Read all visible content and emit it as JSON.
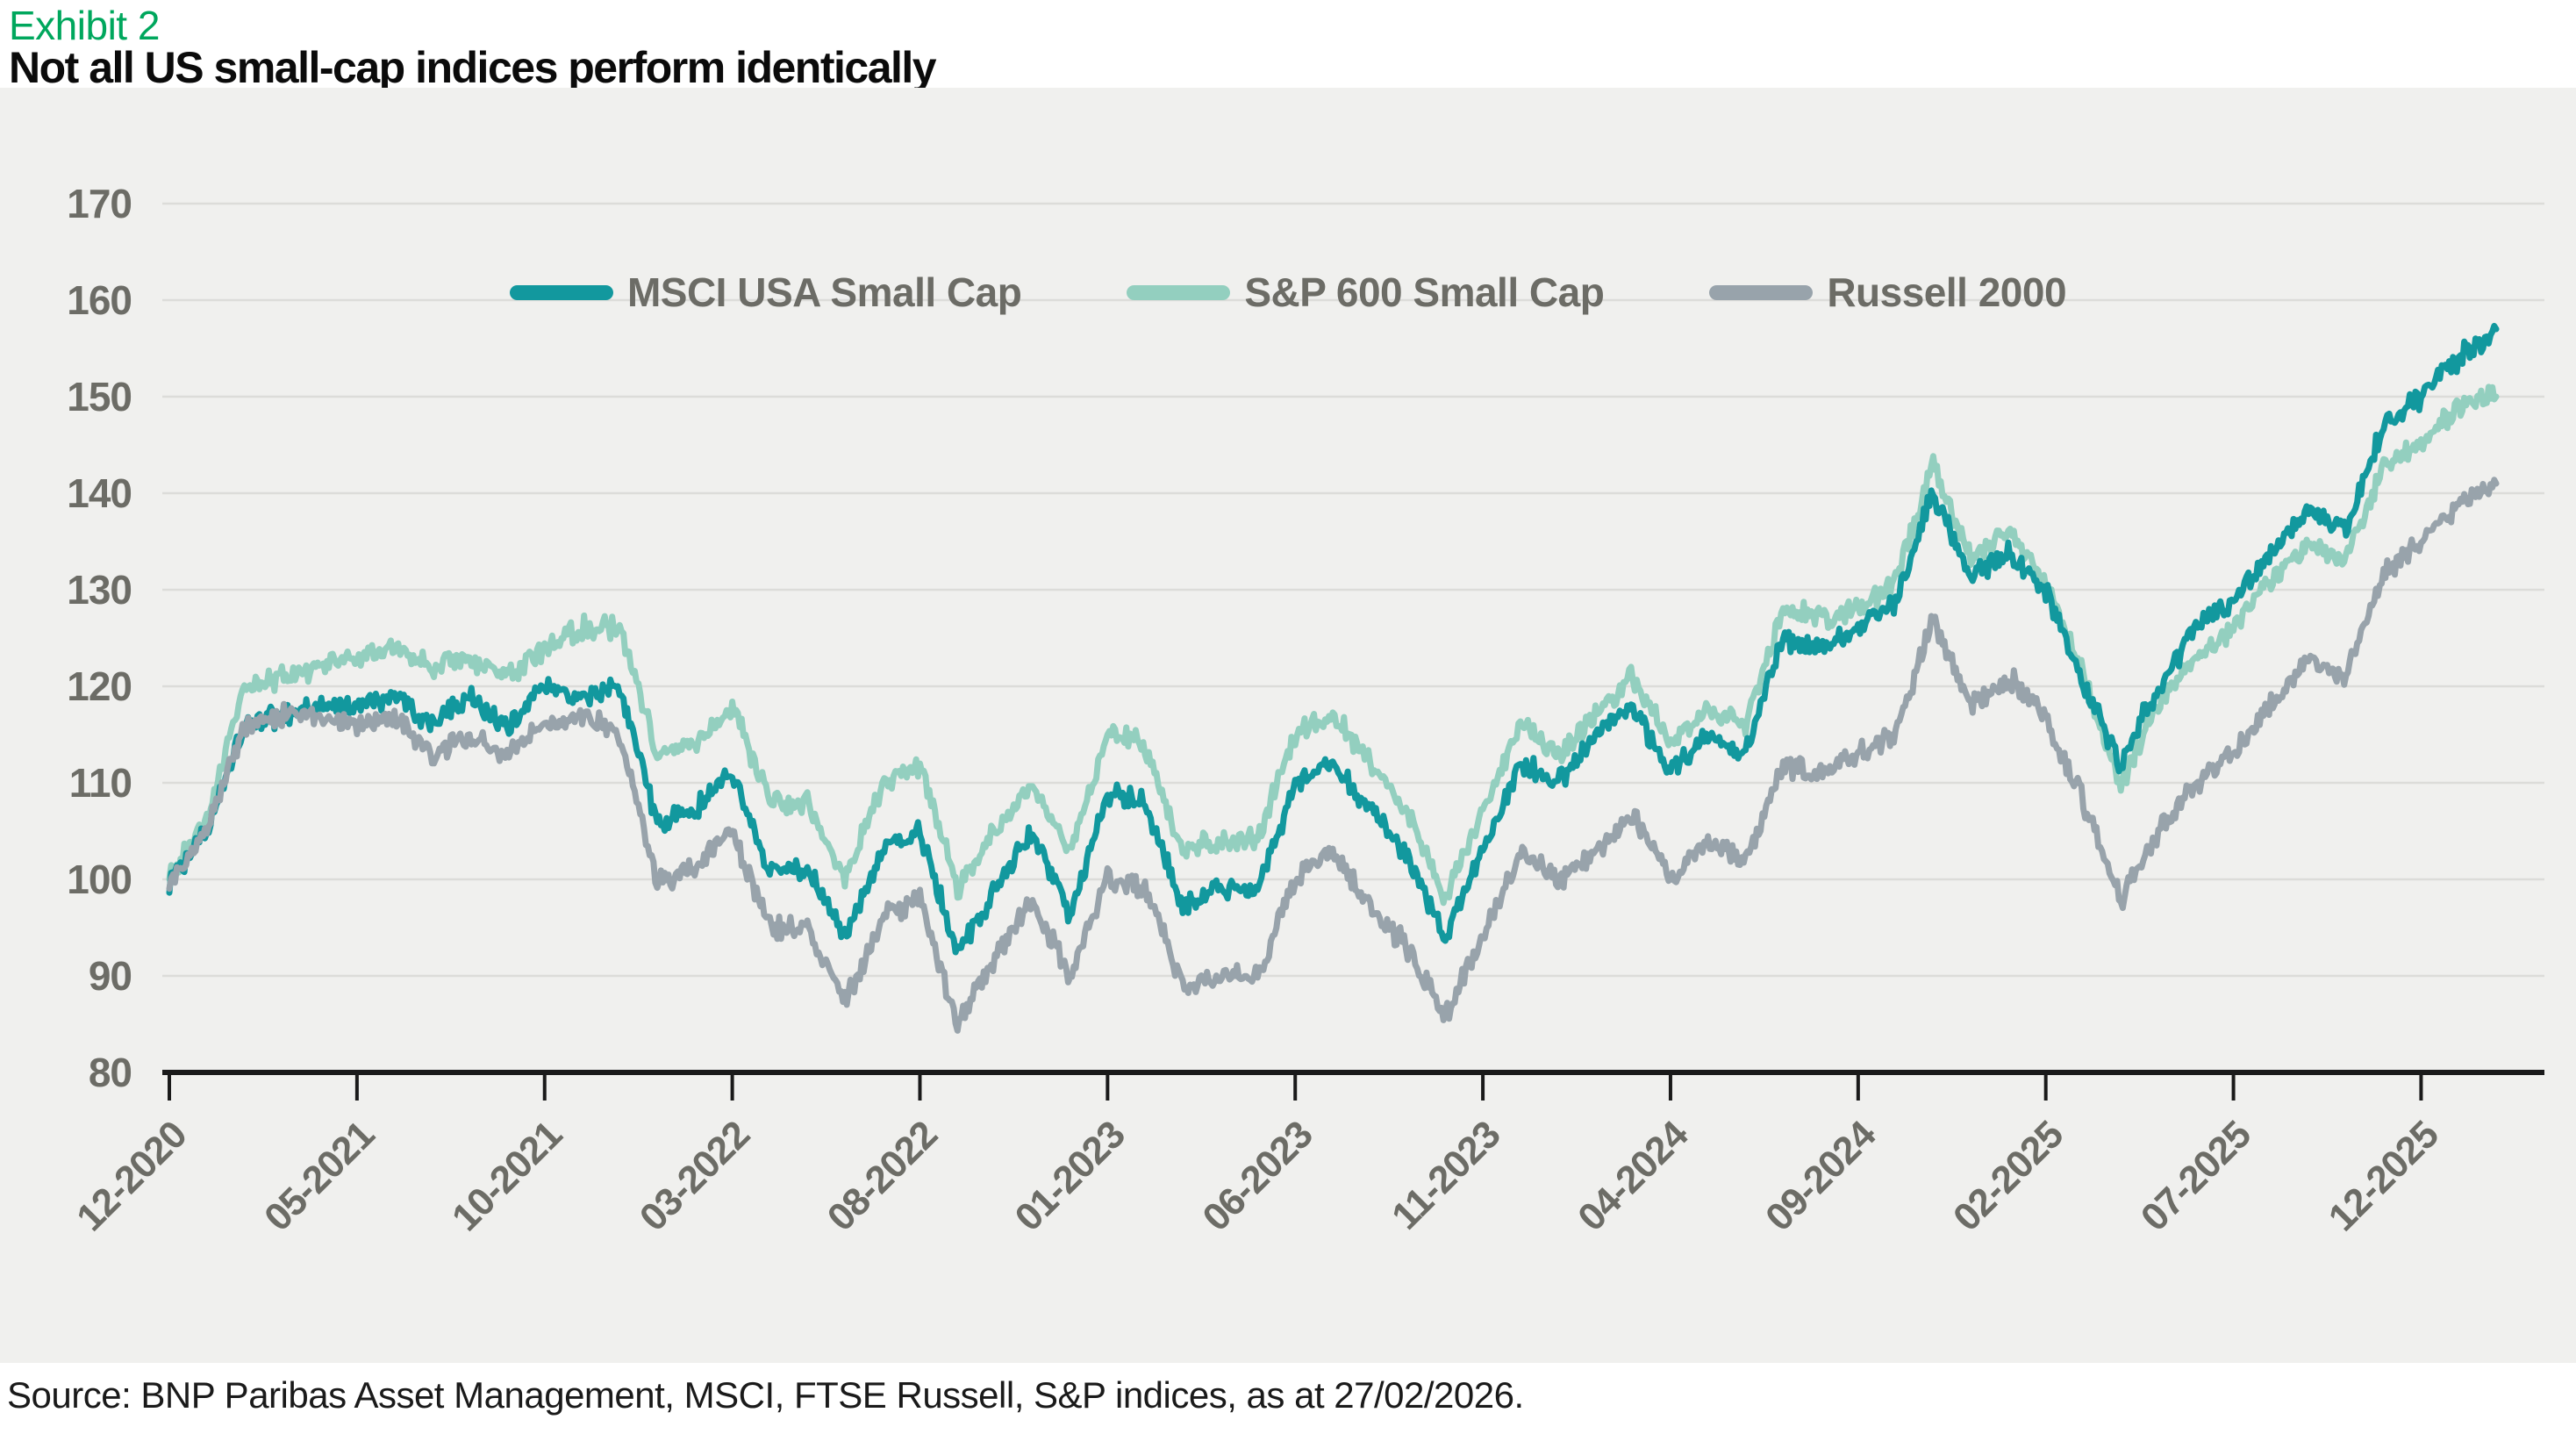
{
  "header": {
    "exhibit_label": "Exhibit 2",
    "title": "Not all US small-cap indices perform identically"
  },
  "footer": {
    "source": "Source: BNP Paribas Asset Management, MSCI, FTSE Russell, S&P indices, as at 27/02/2026."
  },
  "colors": {
    "exhibit_green": "#00A75D",
    "plot_background": "#F0F0EE",
    "grid": "#DCDCD9",
    "axis": "#1A1A1A",
    "axis_label": "#6C6C66",
    "msci": "#12989E",
    "sp600": "#93CFBF",
    "russell": "#98A3AB"
  },
  "chart_data": {
    "type": "line",
    "title": "Not all US small-cap indices perform identically",
    "xlabel": "",
    "ylabel": "",
    "x_unit": "month",
    "base_value": 100,
    "ylim": [
      80,
      170
    ],
    "yticks": [
      80,
      90,
      100,
      110,
      120,
      130,
      140,
      150,
      160,
      170
    ],
    "grid": "horizontal-only",
    "legend_position": "top-center",
    "x_tick_labels": [
      "12-2020",
      "05-2021",
      "10-2021",
      "03-2022",
      "08-2022",
      "01-2023",
      "06-2023",
      "11-2023",
      "04-2024",
      "09-2024",
      "02-2025",
      "07-2025",
      "12-2025"
    ],
    "x": [
      "12-2020",
      "01-2021",
      "02-2021",
      "03-2021",
      "04-2021",
      "05-2021",
      "06-2021",
      "07-2021",
      "08-2021",
      "09-2021",
      "10-2021",
      "11-2021",
      "12-2021",
      "01-2022",
      "02-2022",
      "03-2022",
      "04-2022",
      "05-2022",
      "06-2022",
      "07-2022",
      "08-2022",
      "09-2022",
      "10-2022",
      "11-2022",
      "12-2022",
      "01-2023",
      "02-2023",
      "03-2023",
      "04-2023",
      "05-2023",
      "06-2023",
      "07-2023",
      "08-2023",
      "09-2023",
      "10-2023",
      "11-2023",
      "12-2023",
      "01-2024",
      "02-2024",
      "03-2024",
      "04-2024",
      "05-2024",
      "06-2024",
      "07-2024",
      "08-2024",
      "09-2024",
      "10-2024",
      "11-2024",
      "12-2024",
      "01-2025",
      "02-2025",
      "03-2025",
      "04-2025",
      "05-2025",
      "06-2025",
      "07-2025",
      "08-2025",
      "09-2025",
      "10-2025",
      "11-2025",
      "12-2025",
      "01-2026",
      "02-2026"
    ],
    "series": [
      {
        "name": "MSCI USA Small Cap",
        "color": "#12989E",
        "values": [
          100,
          105,
          116,
          117,
          118,
          118,
          119,
          116,
          119,
          116,
          120,
          119,
          120,
          106,
          107,
          111,
          101,
          101,
          94,
          103,
          105,
          92,
          99,
          105,
          96,
          109,
          108,
          97,
          99,
          99,
          110,
          112,
          107,
          102,
          94,
          103,
          112,
          110,
          115,
          118,
          111,
          115,
          113,
          125,
          124,
          126,
          129,
          140,
          131,
          134,
          130,
          120,
          112,
          120,
          126,
          129,
          134,
          138,
          136,
          147,
          150,
          154,
          157
        ]
      },
      {
        "name": "S&P 600 Small Cap",
        "color": "#93CFBF",
        "values": [
          100,
          106,
          120,
          121,
          122,
          123,
          124,
          122,
          123,
          121,
          124,
          126,
          126,
          113,
          114,
          118,
          108,
          108,
          100,
          110,
          112,
          99,
          105,
          110,
          103,
          115,
          114,
          103,
          104,
          104,
          115,
          117,
          112,
          107,
          98,
          107,
          116,
          113,
          117,
          121,
          114,
          118,
          116,
          128,
          127,
          128,
          131,
          143,
          133,
          136,
          131,
          121,
          110,
          118,
          123,
          126,
          131,
          135,
          133,
          143,
          145,
          149,
          150
        ]
      },
      {
        "name": "Russell 2000",
        "color": "#98A3AB",
        "values": [
          100,
          105,
          116,
          117,
          117,
          116,
          117,
          113,
          115,
          113,
          116,
          117,
          115,
          100,
          101,
          105,
          95,
          95,
          87,
          96,
          98,
          85,
          92,
          98,
          90,
          100,
          99,
          89,
          90,
          90,
          100,
          103,
          97,
          93,
          86,
          94,
          103,
          100,
          103,
          107,
          100,
          104,
          102,
          112,
          111,
          113,
          115,
          127,
          118,
          121,
          117,
          108,
          98,
          105,
          110,
          113,
          118,
          123,
          121,
          132,
          135,
          139,
          141
        ]
      }
    ]
  }
}
